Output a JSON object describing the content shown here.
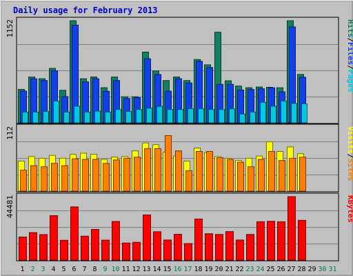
{
  "chart_data": {
    "type": "bar",
    "title": "Daily usage for February 2013",
    "categories": [
      "1",
      "2",
      "3",
      "4",
      "5",
      "6",
      "7",
      "8",
      "9",
      "10",
      "11",
      "12",
      "13",
      "14",
      "15",
      "16",
      "17",
      "18",
      "19",
      "20",
      "21",
      "22",
      "23",
      "24",
      "25",
      "26",
      "27",
      "28",
      "29",
      "30",
      "31"
    ],
    "weekend_days": [
      2,
      3,
      9,
      10,
      16,
      17,
      23,
      24,
      30,
      31
    ],
    "panels": [
      {
        "name": "hits-files-pages",
        "ylabel_max": "1152",
        "ylim": [
          0,
          1152
        ],
        "legend": [
          "Pages",
          "Files",
          "Hits"
        ],
        "legend_colors": [
          "#00c8e0",
          "#1040e8",
          "#108060"
        ],
        "series": [
          {
            "name": "Hits",
            "color": "#108060",
            "values": [
              378,
              517,
              497,
              614,
              367,
              1152,
              497,
              517,
              396,
              517,
              294,
              294,
              798,
              585,
              477,
              517,
              477,
              714,
              654,
              1022,
              474,
              415,
              396,
              404,
              401,
              396,
              1152,
              546,
              null,
              null,
              null
            ]
          },
          {
            "name": "Files",
            "color": "#1040e8",
            "values": [
              358,
              497,
              477,
              587,
              295,
              1102,
              462,
              497,
              356,
              477,
              274,
              284,
              723,
              545,
              357,
              497,
              450,
              694,
              624,
              434,
              434,
              370,
              376,
              384,
              395,
              350,
              1082,
              514,
              null,
              null,
              null
            ]
          },
          {
            "name": "Pages",
            "color": "#00c8e0",
            "values": [
              121,
              121,
              128,
              245,
              121,
              187,
              121,
              131,
              121,
              150,
              128,
              150,
              165,
              185,
              150,
              150,
              158,
              158,
              150,
              150,
              158,
              98,
              121,
              231,
              187,
              245,
              218,
              214,
              null,
              null,
              null
            ]
          }
        ]
      },
      {
        "name": "visits-sites",
        "ylabel_max": "112",
        "ylim": [
          0,
          112
        ],
        "legend": [
          "Sites",
          "Visits"
        ],
        "legend_colors": [
          "#ff8000",
          "#ffff00"
        ],
        "series": [
          {
            "name": "Visits",
            "color": "#ffff00",
            "values": [
              53,
              61,
              58,
              63,
              58,
              65,
              67,
              65,
              56,
              60,
              61,
              71,
              85,
              82,
              69,
              62,
              53,
              76,
              68,
              61,
              58,
              54,
              58,
              62,
              87,
              70,
              78,
              66,
              null,
              null,
              null
            ]
          },
          {
            "name": "Sites",
            "color": "#ff8000",
            "values": [
              37,
              45,
              43,
              49,
              45,
              57,
              56,
              56,
              49,
              55,
              58,
              60,
              75,
              75,
              98,
              71,
              36,
              70,
              70,
              59,
              56,
              51,
              43,
              56,
              70,
              54,
              58,
              60,
              null,
              null,
              null
            ]
          }
        ]
      },
      {
        "name": "kbytes",
        "ylabel_max": "44481",
        "ylim": [
          0,
          44481
        ],
        "legend": [
          "KBytes"
        ],
        "legend_colors": [
          "#ff0000"
        ],
        "series": [
          {
            "name": "KBytes",
            "color": "#ff0000",
            "values": [
              16200,
              19300,
              17900,
              31200,
              13900,
              37300,
              16800,
              21500,
              14000,
              27100,
              12000,
              12500,
              31700,
              19900,
              14100,
              18100,
              11600,
              28800,
              18500,
              18000,
              20000,
              14100,
              18000,
              26900,
              27200,
              26900,
              44481,
              27900,
              null,
              null,
              null
            ]
          }
        ]
      }
    ]
  }
}
